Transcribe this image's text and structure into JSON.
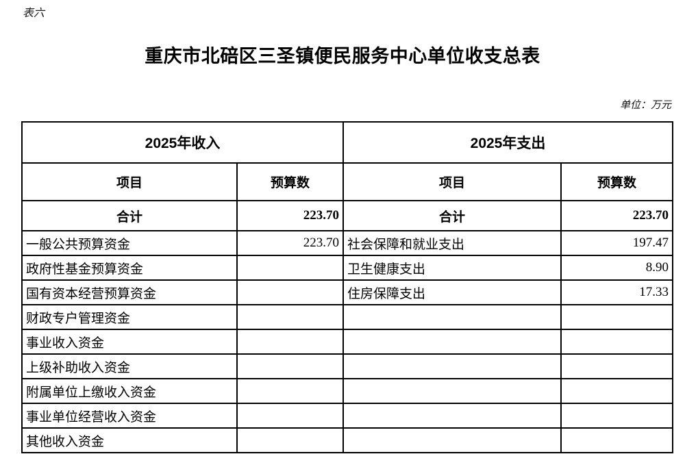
{
  "page": {
    "table_label": "表六",
    "title": "重庆市北碚区三圣镇便民服务中心单位收支总表",
    "unit_note": "单位：万元"
  },
  "table": {
    "income_section_header": "2025年收入",
    "expense_section_header": "2025年支出",
    "item_col_header": "项目",
    "budget_col_header": "预算数",
    "total_row": {
      "income_item": "合计",
      "income_value": "223.70",
      "expense_item": "合计",
      "expense_value": "223.70"
    },
    "rows": [
      {
        "income_item": "一般公共预算资金",
        "income_value": "223.70",
        "expense_item": "社会保障和就业支出",
        "expense_value": "197.47"
      },
      {
        "income_item": "政府性基金预算资金",
        "income_value": "",
        "expense_item": "卫生健康支出",
        "expense_value": "8.90"
      },
      {
        "income_item": "国有资本经营预算资金",
        "income_value": "",
        "expense_item": "住房保障支出",
        "expense_value": "17.33"
      },
      {
        "income_item": "财政专户管理资金",
        "income_value": "",
        "expense_item": "",
        "expense_value": ""
      },
      {
        "income_item": "事业收入资金",
        "income_value": "",
        "expense_item": "",
        "expense_value": ""
      },
      {
        "income_item": "上级补助收入资金",
        "income_value": "",
        "expense_item": "",
        "expense_value": ""
      },
      {
        "income_item": "附属单位上缴收入资金",
        "income_value": "",
        "expense_item": "",
        "expense_value": ""
      },
      {
        "income_item": "事业单位经营收入资金",
        "income_value": "",
        "expense_item": "",
        "expense_value": ""
      },
      {
        "income_item": "其他收入资金",
        "income_value": "",
        "expense_item": "",
        "expense_value": ""
      }
    ]
  }
}
